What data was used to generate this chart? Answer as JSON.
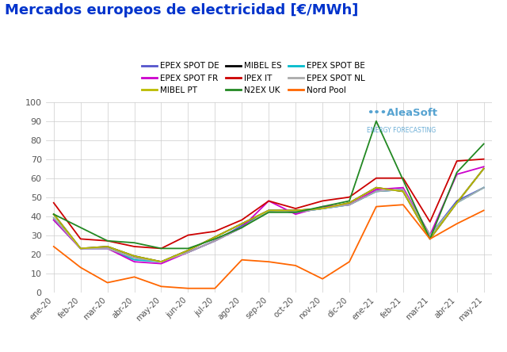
{
  "title": "Mercados europeos de electricidad [€/MWh]",
  "title_color": "#0033cc",
  "background_color": "#ffffff",
  "grid_color": "#cccccc",
  "xlabels": [
    "ene-20",
    "feb-20",
    "mar-20",
    "abr-20",
    "may-20",
    "jun-20",
    "jul-20",
    "ago-20",
    "sep-20",
    "oct-20",
    "nov-20",
    "dic-20",
    "ene-21",
    "feb-21",
    "mar-21",
    "abr-21",
    "may-21"
  ],
  "ylim": [
    0,
    100
  ],
  "yticks": [
    0,
    10,
    20,
    30,
    40,
    50,
    60,
    70,
    80,
    90,
    100
  ],
  "series": [
    {
      "label": "EPEX SPOT DE",
      "color": "#5555cc",
      "values": [
        38,
        23,
        23,
        18,
        16,
        21,
        27,
        35,
        43,
        42,
        44,
        46,
        53,
        54,
        30,
        48,
        55
      ]
    },
    {
      "label": "MIBEL ES",
      "color": "#000000",
      "values": [
        41,
        23,
        24,
        19,
        16,
        22,
        29,
        36,
        43,
        43,
        44,
        47,
        55,
        53,
        28,
        47,
        65
      ]
    },
    {
      "label": "EPEX SPOT BE",
      "color": "#00bbcc",
      "values": [
        39,
        23,
        23,
        17,
        16,
        21,
        27,
        34,
        43,
        42,
        44,
        46,
        53,
        54,
        30,
        47,
        55
      ]
    },
    {
      "label": "EPEX SPOT FR",
      "color": "#cc00cc",
      "values": [
        38,
        23,
        23,
        16,
        15,
        21,
        27,
        34,
        48,
        41,
        45,
        46,
        54,
        55,
        30,
        62,
        66
      ]
    },
    {
      "label": "IPEX IT",
      "color": "#cc0000",
      "values": [
        47,
        28,
        27,
        24,
        23,
        30,
        32,
        38,
        48,
        44,
        48,
        50,
        60,
        60,
        37,
        69,
        70
      ]
    },
    {
      "label": "EPEX SPOT NL",
      "color": "#aaaaaa",
      "values": [
        39,
        23,
        23,
        18,
        16,
        21,
        27,
        34,
        43,
        42,
        44,
        46,
        53,
        54,
        30,
        47,
        55
      ]
    },
    {
      "label": "MIBEL PT",
      "color": "#bbbb00",
      "values": [
        41,
        23,
        24,
        19,
        16,
        22,
        29,
        36,
        43,
        43,
        44,
        47,
        55,
        53,
        28,
        47,
        65
      ]
    },
    {
      "label": "N2EX UK",
      "color": "#228822",
      "values": [
        41,
        34,
        27,
        26,
        23,
        23,
        28,
        34,
        42,
        42,
        45,
        48,
        90,
        59,
        28,
        63,
        78
      ]
    },
    {
      "label": "Nord Pool",
      "color": "#ff6600",
      "values": [
        24,
        13,
        5,
        8,
        3,
        2,
        2,
        17,
        16,
        14,
        7,
        16,
        45,
        46,
        28,
        36,
        43
      ]
    }
  ],
  "legend": [
    [
      "EPEX SPOT DE",
      "#5555cc"
    ],
    [
      "EPEX SPOT FR",
      "#cc00cc"
    ],
    [
      "MIBEL PT",
      "#bbbb00"
    ],
    [
      "MIBEL ES",
      "#000000"
    ],
    [
      "IPEX IT",
      "#cc0000"
    ],
    [
      "N2EX UK",
      "#228822"
    ],
    [
      "EPEX SPOT BE",
      "#00bbcc"
    ],
    [
      "EPEX SPOT NL",
      "#aaaaaa"
    ],
    [
      "Nord Pool",
      "#ff6600"
    ]
  ],
  "watermark_text": "AleaSoft",
  "watermark_sub": "ENERGY FORECASTING",
  "watermark_color": "#4499cc"
}
